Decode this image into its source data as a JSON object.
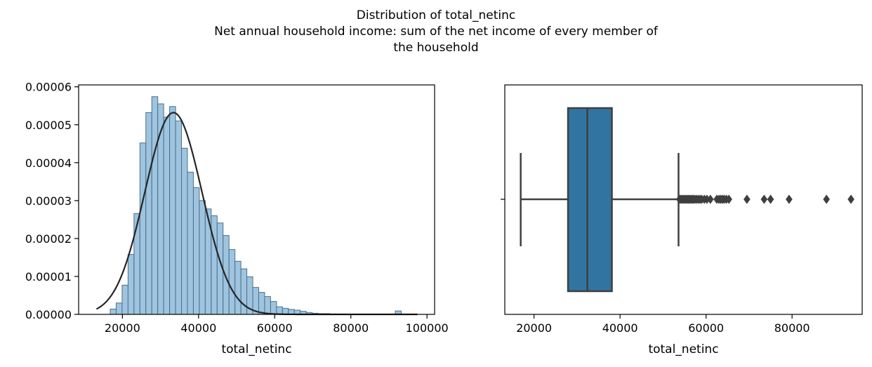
{
  "figure": {
    "title_lines": [
      "Distribution of total_netinc",
      "Net annual household income: sum of the net income of every member of",
      "the household"
    ]
  },
  "chart_data": [
    {
      "type": "histogram",
      "xlabel": "total_netinc",
      "ylabel": "",
      "xlim": [
        8500,
        102000
      ],
      "ylim": [
        0,
        6.05e-05
      ],
      "xticks": [
        20000,
        40000,
        60000,
        80000,
        100000
      ],
      "yticks": [
        0.0,
        1e-05,
        2e-05,
        3e-05,
        4e-05,
        5e-05,
        6e-05
      ],
      "ytick_labels": [
        "0.00000",
        "0.00001",
        "0.00002",
        "0.00003",
        "0.00004",
        "0.00005",
        "0.00006"
      ],
      "bar_color": "#9ec4df",
      "bar_edge_color": "#4d6f8a",
      "curve_color": "#262626",
      "bins": {
        "start": 16800,
        "width": 1560,
        "densities": [
          1.4e-06,
          3e-06,
          7.7e-06,
          1.58e-05,
          2.66e-05,
          4.52e-05,
          5.32e-05,
          5.74e-05,
          5.55e-05,
          5.2e-05,
          5.48e-05,
          5.1e-05,
          4.38e-05,
          3.75e-05,
          3.34e-05,
          3e-05,
          2.78e-05,
          2.6e-05,
          2.41e-05,
          2.08e-05,
          1.71e-05,
          1.4e-05,
          1.2e-05,
          9.9e-06,
          7.1e-06,
          5.8e-06,
          4.7e-06,
          3.4e-06,
          2e-06,
          1.6e-06,
          1.3e-06,
          1.1e-06,
          8e-07,
          5e-07,
          3e-07,
          2e-07,
          2e-07,
          1e-07,
          1e-07,
          0.0,
          0.0,
          0.0,
          0.0,
          0.0,
          0.0,
          0.0,
          0.0,
          0.0,
          9e-07
        ]
      },
      "fit_curve": {
        "distribution": "normal",
        "mean": 33400,
        "std": 7500,
        "x_range": [
          13200,
          97500
        ]
      }
    },
    {
      "type": "boxplot",
      "xlabel": "total_netinc",
      "xlim": [
        13200,
        96300
      ],
      "xticks": [
        20000,
        40000,
        60000,
        80000
      ],
      "box_color": "#3274a1",
      "line_color": "#3f3f3f",
      "whisker_low": 16900,
      "q1": 27900,
      "median": 32400,
      "q3": 38100,
      "whisker_high": 53600,
      "outliers": [
        53800,
        54100,
        54400,
        54700,
        55000,
        55300,
        55600,
        55900,
        56200,
        56500,
        56800,
        57100,
        57400,
        57800,
        58200,
        58600,
        59000,
        59600,
        60200,
        61000,
        62500,
        63000,
        63400,
        63800,
        64200,
        64700,
        65300,
        69500,
        73500,
        75000,
        79300,
        88000,
        93700
      ]
    }
  ]
}
